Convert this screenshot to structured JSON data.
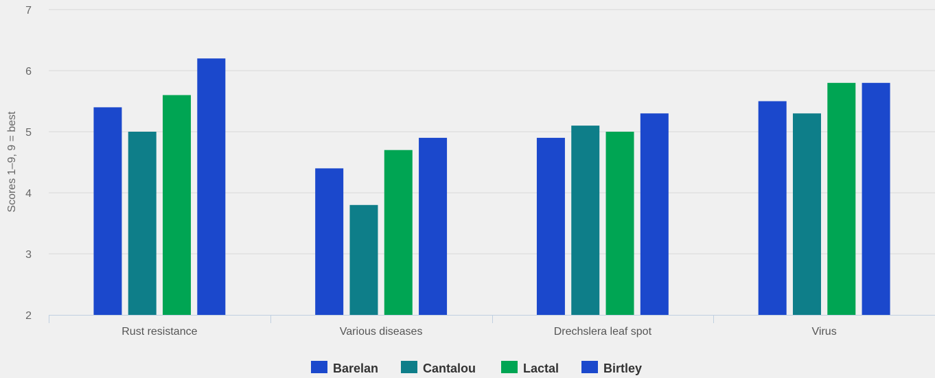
{
  "chart_data": {
    "type": "bar",
    "title": "",
    "xlabel": "",
    "ylabel": "Scores 1–9, 9 = best",
    "ylim": [
      2,
      7
    ],
    "yticks": [
      2,
      3,
      4,
      5,
      6,
      7
    ],
    "grid": true,
    "legend_position": "bottom-center",
    "categories": [
      "Rust resistance",
      "Various diseases",
      "Drechslera leaf spot",
      "Virus"
    ],
    "series": [
      {
        "name": "Barelan",
        "color": "#1b48cc",
        "values": [
          5.4,
          4.4,
          4.9,
          5.5
        ]
      },
      {
        "name": "Cantalou",
        "color": "#0e7e89",
        "values": [
          5.0,
          3.8,
          5.1,
          5.3
        ]
      },
      {
        "name": "Lactal",
        "color": "#00a553",
        "values": [
          5.6,
          4.7,
          5.0,
          5.8
        ]
      },
      {
        "name": "Birtley",
        "color": "#1b48cc",
        "values": [
          6.2,
          4.9,
          5.3,
          5.8
        ]
      }
    ]
  }
}
